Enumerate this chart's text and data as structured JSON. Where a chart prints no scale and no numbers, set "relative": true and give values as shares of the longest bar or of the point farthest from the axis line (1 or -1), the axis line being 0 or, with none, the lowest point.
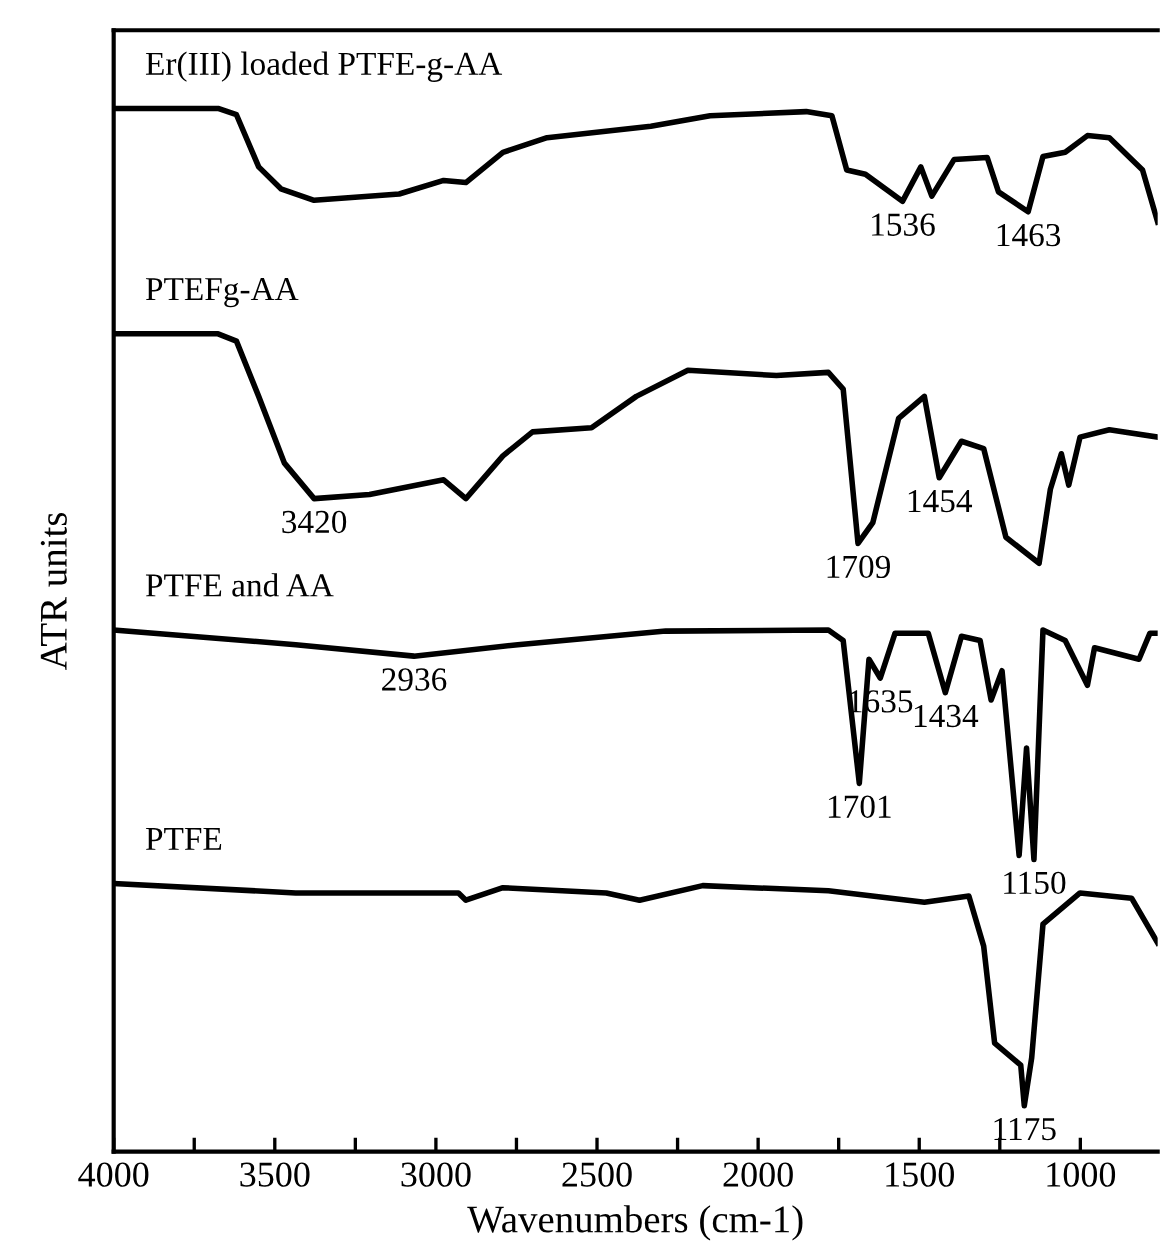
{
  "chart_data": {
    "type": "line",
    "relative": true,
    "xlabel": "Wavenumbers (cm-1)",
    "ylabel": "ATR units",
    "xlim": [
      4000,
      760
    ],
    "xticks": [
      4000,
      {
        "value": 3750,
        "label": null
      },
      3500,
      {
        "value": 3250,
        "label": null
      },
      3000,
      {
        "value": 2750,
        "label": null
      },
      2500,
      {
        "value": 2250,
        "label": null
      },
      2000,
      {
        "value": 1750,
        "label": null
      },
      1500,
      {
        "value": 1250,
        "label": null
      },
      1000
    ],
    "tick_labels": "x",
    "grid": false,
    "legend": false,
    "marker": "none",
    "line_style": "solid",
    "series": [
      {
        "name": "Er(III) loaded PTFE-g-AA",
        "color": "#000000",
        "x": [
          4000,
          3676,
          3619,
          3550,
          3481,
          3378,
          3114,
          2976,
          2907,
          2792,
          2655,
          2333,
          2149,
          1851,
          1771,
          1725,
          1667,
          1552,
          1495,
          1461,
          1392,
          1289,
          1254,
          1162,
          1116,
          1047,
          978,
          910,
          807,
          760
        ],
        "values": [
          1.0,
          1.0,
          0.994,
          0.944,
          0.923,
          0.912,
          0.918,
          0.931,
          0.929,
          0.958,
          0.972,
          0.983,
          0.993,
          0.997,
          0.993,
          0.941,
          0.937,
          0.911,
          0.944,
          0.916,
          0.951,
          0.953,
          0.92,
          0.901,
          0.954,
          0.958,
          0.974,
          0.972,
          0.941,
          0.891
        ]
      },
      {
        "name": "PTEFg-AA",
        "color": "#000000",
        "x": [
          4000,
          3676,
          3619,
          3550,
          3470,
          3378,
          3206,
          2976,
          2907,
          2792,
          2700,
          2517,
          2378,
          2218,
          1943,
          1782,
          1736,
          1690,
          1644,
          1564,
          1484,
          1438,
          1369,
          1300,
          1231,
          1128,
          1093,
          1059,
          1036,
          1001,
          910,
          760
        ],
        "values": [
          0.784,
          0.784,
          0.777,
          0.724,
          0.66,
          0.626,
          0.63,
          0.644,
          0.626,
          0.667,
          0.69,
          0.694,
          0.724,
          0.749,
          0.744,
          0.747,
          0.731,
          0.583,
          0.603,
          0.703,
          0.724,
          0.646,
          0.681,
          0.674,
          0.589,
          0.564,
          0.635,
          0.669,
          0.639,
          0.685,
          0.692,
          0.685
        ]
      },
      {
        "name": "PTFE and AA",
        "color": "#000000",
        "x": [
          4000,
          3435,
          3068,
          2746,
          2287,
          1782,
          1736,
          1686,
          1656,
          1621,
          1575,
          1472,
          1419,
          1369,
          1311,
          1277,
          1243,
          1190,
          1167,
          1144,
          1116,
          1047,
          978,
          956,
          818,
          784,
          760
        ],
        "values": [
          0.5,
          0.486,
          0.475,
          0.486,
          0.499,
          0.5,
          0.49,
          0.353,
          0.472,
          0.454,
          0.497,
          0.497,
          0.44,
          0.494,
          0.49,
          0.433,
          0.461,
          0.284,
          0.387,
          0.28,
          0.5,
          0.49,
          0.447,
          0.483,
          0.472,
          0.497,
          0.497
        ]
      },
      {
        "name": "PTFE",
        "color": "#000000",
        "x": [
          4000,
          3435,
          2930,
          2907,
          2792,
          2471,
          2368,
          2172,
          1782,
          1484,
          1346,
          1300,
          1266,
          1185,
          1174,
          1151,
          1116,
          1001,
          841,
          760
        ],
        "values": [
          0.257,
          0.248,
          0.248,
          0.241,
          0.253,
          0.248,
          0.241,
          0.255,
          0.25,
          0.239,
          0.245,
          0.197,
          0.104,
          0.083,
          0.044,
          0.09,
          0.218,
          0.248,
          0.243,
          0.2
        ]
      }
    ],
    "annotations": [
      {
        "text": "1536",
        "x": 1552,
        "y": 0.911
      },
      {
        "text": "1463",
        "x": 1162,
        "y": 0.901
      },
      {
        "text": "3420",
        "x": 3378,
        "y": 0.626
      },
      {
        "text": "1709",
        "x": 1690,
        "y": 0.583
      },
      {
        "text": "1454",
        "x": 1438,
        "y": 0.646
      },
      {
        "text": "2936",
        "x": 3068,
        "y": 0.475
      },
      {
        "text": "1635",
        "x": 1621,
        "y": 0.454
      },
      {
        "text": "1434",
        "x": 1419,
        "y": 0.44
      },
      {
        "text": "1701",
        "x": 1686,
        "y": 0.353
      },
      {
        "text": "1150",
        "x": 1144,
        "y": 0.28
      },
      {
        "text": "1175",
        "x": 1174,
        "y": 0.044
      }
    ]
  }
}
